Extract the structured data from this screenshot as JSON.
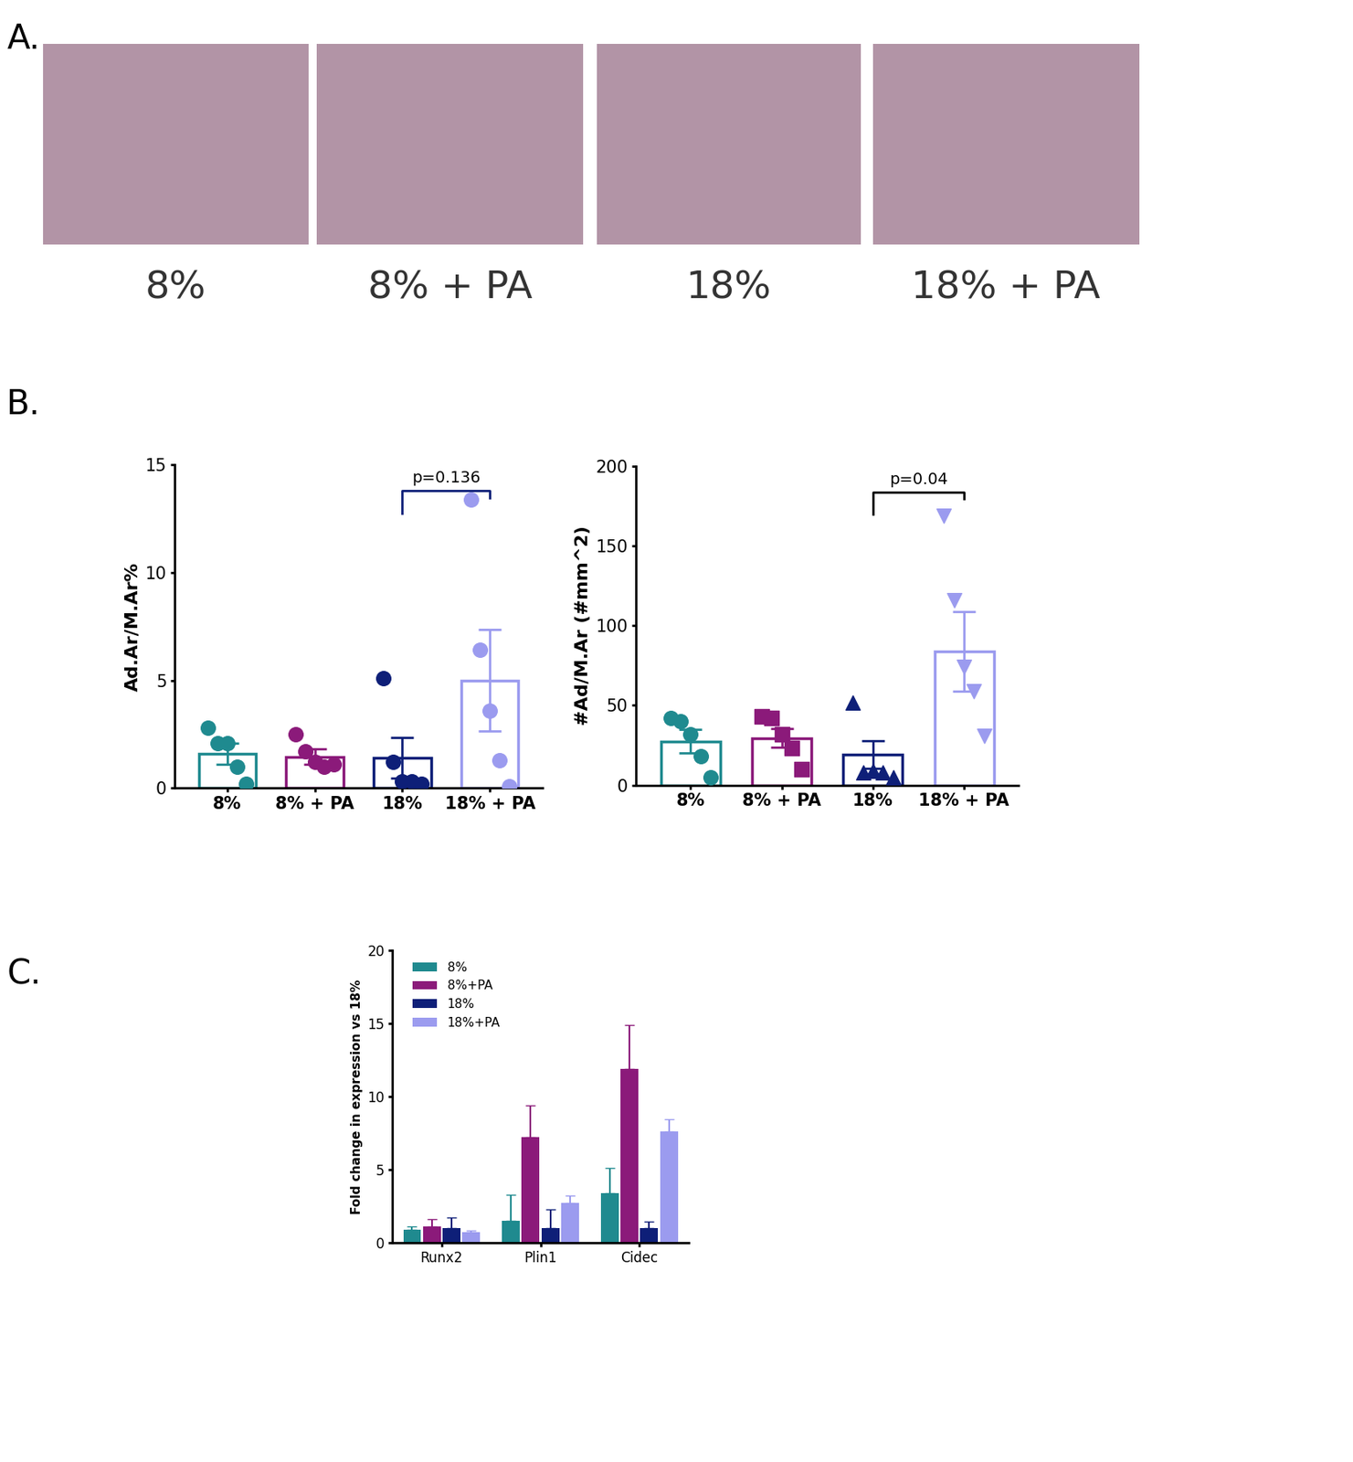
{
  "panel_labels": [
    "A.",
    "B.",
    "C."
  ],
  "images": {
    "labels": [
      "8%",
      "8% + PA",
      "18%",
      "18% + PA"
    ]
  },
  "chart_data": [
    {
      "type": "bar_dot",
      "ylabel": "Ad.Ar/M.Ar%",
      "categories": [
        "8%",
        "8% + PA",
        "18%",
        "18% + PA"
      ],
      "values": [
        1.6,
        1.45,
        1.4,
        5.0
      ],
      "errors": [
        0.5,
        0.35,
        0.95,
        2.35
      ],
      "points": [
        [
          2.8,
          2.1,
          2.1,
          1.0,
          0.2
        ],
        [
          2.5,
          1.7,
          1.2,
          1.0,
          1.1
        ],
        [
          5.1,
          1.2,
          0.3,
          0.3,
          0.2
        ],
        [
          13.4,
          6.4,
          3.6,
          1.3,
          0.1
        ]
      ],
      "colors": [
        "#1f8a8f",
        "#8b1a7a",
        "#0e1f78",
        "#9b9bef"
      ],
      "markers": [
        "circle",
        "circle",
        "circle",
        "circle"
      ],
      "ylim": [
        0,
        15
      ],
      "yticks": [
        0,
        5,
        10,
        15
      ],
      "annotation": {
        "between": [
          "18%",
          "18% + PA"
        ],
        "text": "p=0.136"
      }
    },
    {
      "type": "bar_dot",
      "ylabel": "#Ad/M.Ar (#mm^2)",
      "categories": [
        "8%",
        "8% + PA",
        "18%",
        "18% + PA"
      ],
      "values": [
        27.5,
        29.6,
        19,
        84
      ],
      "errors": [
        7.5,
        6,
        8.7,
        25
      ],
      "points": [
        [
          42,
          40,
          32,
          18,
          5
        ],
        [
          43,
          42,
          32,
          23,
          10
        ],
        [
          52,
          8,
          9,
          8,
          5
        ],
        [
          169,
          116,
          74,
          59,
          31
        ]
      ],
      "colors": [
        "#1f8a8f",
        "#8b1a7a",
        "#0e1f78",
        "#9b9bef"
      ],
      "markers": [
        "circle",
        "square",
        "triangle_up",
        "triangle_down"
      ],
      "ylim": [
        0,
        200
      ],
      "yticks": [
        0,
        50,
        100,
        150,
        200
      ],
      "annotation": {
        "between": [
          "18%",
          "18% + PA"
        ],
        "text": "p=0.04"
      }
    },
    {
      "type": "grouped_bar",
      "ylabel": "Fold change in expression vs 18%",
      "categories": [
        "Runx2",
        "Plin1",
        "Cidec"
      ],
      "series": [
        {
          "name": "8%",
          "color": "#1f8a8f",
          "values": [
            0.9,
            1.5,
            3.4
          ],
          "errors": [
            0.2,
            1.8,
            1.7
          ]
        },
        {
          "name": "8%+PA",
          "color": "#8b1a7a",
          "values": [
            1.1,
            7.2,
            11.9
          ],
          "errors": [
            0.5,
            2.2,
            3.0
          ]
        },
        {
          "name": "18%",
          "color": "#0e1f78",
          "values": [
            1.0,
            1.0,
            1.0
          ],
          "errors": [
            0.75,
            1.3,
            0.45
          ]
        },
        {
          "name": "18%+PA",
          "color": "#9b9bef",
          "values": [
            0.7,
            2.7,
            7.6
          ],
          "errors": [
            0.15,
            0.55,
            0.85
          ]
        }
      ],
      "ylim": [
        0,
        20
      ],
      "yticks": [
        0,
        5,
        10,
        15,
        20
      ],
      "legend": "upper left"
    }
  ]
}
